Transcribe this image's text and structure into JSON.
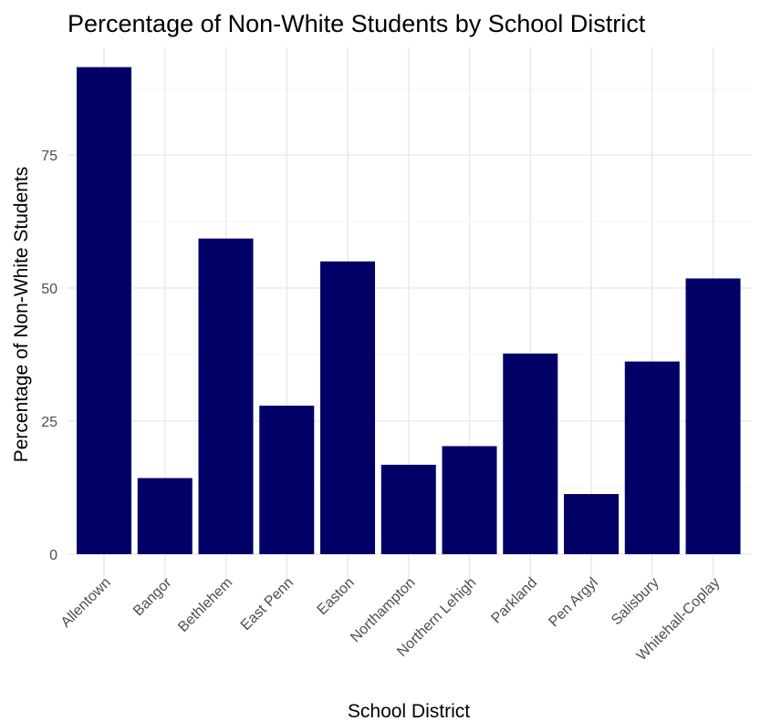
{
  "chart_data": {
    "type": "bar",
    "title": "Percentage of Non-White Students by School District",
    "xlabel": "School District",
    "ylabel": "Percentage of Non-White Students",
    "categories": [
      "Allentown",
      "Bangor",
      "Bethlehem",
      "East Penn",
      "Easton",
      "Northampton",
      "Northern Lehigh",
      "Parkland",
      "Pen Argyl",
      "Salisbury",
      "Whitehall-Coplay"
    ],
    "values": [
      91.5,
      14.3,
      59.3,
      27.9,
      55.0,
      16.8,
      20.3,
      37.7,
      11.3,
      36.2,
      51.8
    ],
    "yticks": [
      0,
      25,
      50,
      75
    ],
    "ylim": [
      0,
      92.5
    ],
    "grid": true,
    "legend": "none",
    "bar_color": "#000066",
    "gridline_color": "#ebebeb"
  }
}
